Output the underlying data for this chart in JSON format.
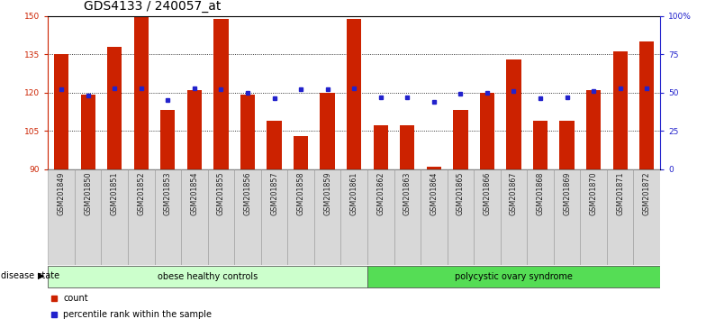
{
  "title": "GDS4133 / 240057_at",
  "samples": [
    "GSM201849",
    "GSM201850",
    "GSM201851",
    "GSM201852",
    "GSM201853",
    "GSM201854",
    "GSM201855",
    "GSM201856",
    "GSM201857",
    "GSM201858",
    "GSM201859",
    "GSM201861",
    "GSM201862",
    "GSM201863",
    "GSM201864",
    "GSM201865",
    "GSM201866",
    "GSM201867",
    "GSM201868",
    "GSM201869",
    "GSM201870",
    "GSM201871",
    "GSM201872"
  ],
  "counts": [
    135,
    119,
    138,
    150,
    113,
    121,
    149,
    119,
    109,
    103,
    120,
    149,
    107,
    107,
    91,
    113,
    120,
    133,
    109,
    109,
    121,
    136,
    140
  ],
  "percentiles": [
    52,
    48,
    53,
    53,
    45,
    53,
    52,
    50,
    46,
    52,
    52,
    53,
    47,
    47,
    44,
    49,
    50,
    51,
    46,
    47,
    51,
    53,
    53
  ],
  "bar_color": "#cc2200",
  "marker_color": "#2222cc",
  "ymin": 90,
  "ymax": 150,
  "yticks": [
    90,
    105,
    120,
    135,
    150
  ],
  "y2min": 0,
  "y2max": 100,
  "y2ticks": [
    0,
    25,
    50,
    75,
    100
  ],
  "y2ticklabels": [
    "0",
    "25",
    "50",
    "75",
    "100%"
  ],
  "groups": [
    {
      "label": "obese healthy controls",
      "start": 0,
      "end": 12,
      "color": "#ccffcc"
    },
    {
      "label": "polycystic ovary syndrome",
      "start": 12,
      "end": 23,
      "color": "#55dd55"
    }
  ],
  "group_label": "disease state",
  "legend_count": "count",
  "legend_percentile": "percentile rank within the sample",
  "y_label_color": "#cc2200",
  "y2_label_color": "#2222cc",
  "title_fontsize": 10,
  "tick_fontsize": 6.5,
  "bar_width": 0.55
}
